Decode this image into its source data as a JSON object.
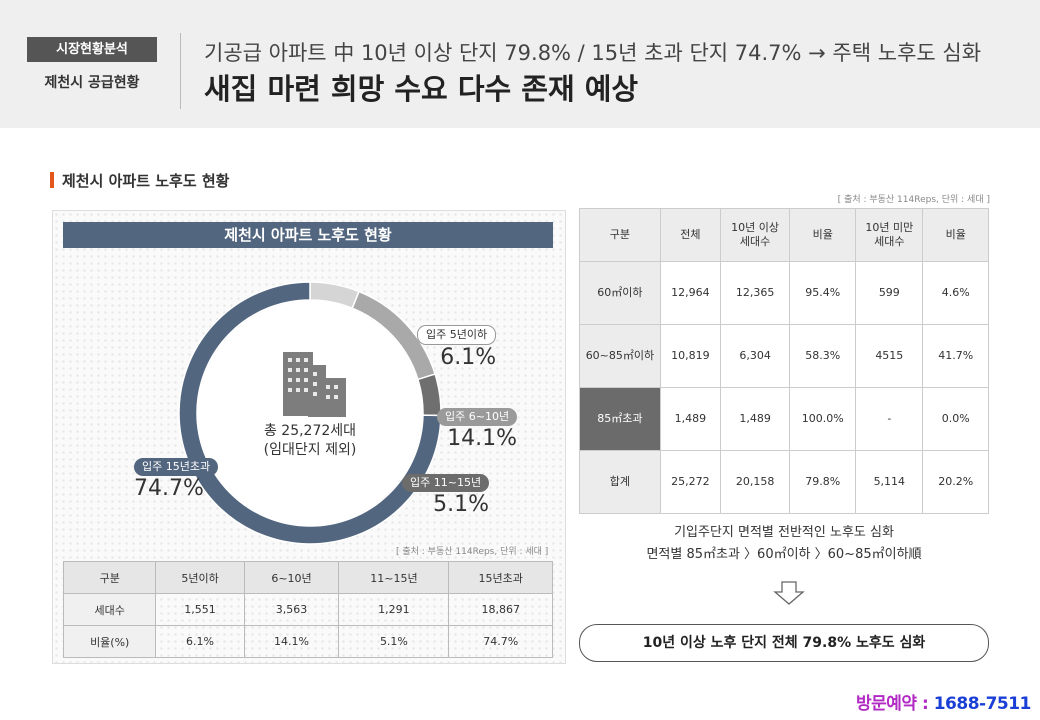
{
  "header": {
    "badge": "시장현황분석",
    "badge_sub": "제천시 공급현황",
    "title": "기공급 아파트 中 10년 이상 단지 79.8% / 15년 초과 단지 74.7% → 주택 노후도 심화",
    "subtitle": "새집 마련 희망 수요 다수 존재 예상"
  },
  "section_title": "제천시 아파트 노후도 현황",
  "source": "[ 출처 : 부동산 114Reps, 단위 : 세대 ]",
  "panel": {
    "title": "제천시 아파트 노후도  현황",
    "center_line1": "총 25,272세대",
    "center_line2": "(임대단지 제외)"
  },
  "chart_data": {
    "type": "pie",
    "categories": [
      "입주 5년이하",
      "입주 6~10년",
      "입주 11~15년",
      "입주 15년초과"
    ],
    "values": [
      6.1,
      14.1,
      5.1,
      74.7
    ],
    "labels": [
      "6.1%",
      "14.1%",
      "5.1%",
      "74.7%"
    ],
    "colors": [
      "#d5d5d5",
      "#a9a9a9",
      "#6f6f6f",
      "#52667f"
    ]
  },
  "summary_table": {
    "headers": [
      "구분",
      "5년이하",
      "6~10년",
      "11~15년",
      "15년초과"
    ],
    "rows": [
      [
        "세대수",
        "1,551",
        "3,563",
        "1,291",
        "18,867"
      ],
      [
        "비율(%)",
        "6.1%",
        "14.1%",
        "5.1%",
        "74.7%"
      ]
    ]
  },
  "right_table": {
    "h0": "구분",
    "h1": "전체",
    "h2a": "10년 이상",
    "h2b": "세대수",
    "h3": "비율",
    "h4a": "10년 미만",
    "h4b": "세대수",
    "h5": "비율",
    "rows": [
      [
        "60㎡이하",
        "12,964",
        "12,365",
        "95.4%",
        "599",
        "4.6%"
      ],
      [
        "60~85㎡이하",
        "10,819",
        "6,304",
        "58.3%",
        "4515",
        "41.7%"
      ],
      [
        "85㎡초과",
        "1,489",
        "1,489",
        "100.0%",
        "-",
        "0.0%"
      ],
      [
        "합계",
        "25,272",
        "20,158",
        "79.8%",
        "5,114",
        "20.2%"
      ]
    ]
  },
  "note_line1": "기입주단지 면적별 전반적인 노후도 심화",
  "note_line2": "면적별 85㎡초과 〉60㎡이하 〉60~85㎡이하順",
  "conclusion": "10년 이상 노후 단지 전체 79.8% 노후도 심화",
  "visit_label": "방문예약 : ",
  "visit_phone": "1688-7511"
}
